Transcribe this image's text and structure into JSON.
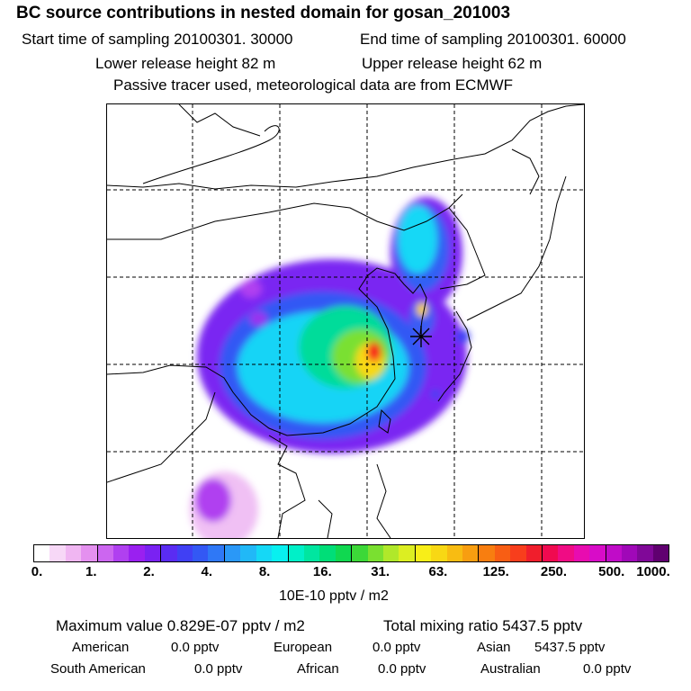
{
  "header": {
    "title": "BC  source contributions in nested domain for gosan_201003",
    "start": "Start time of sampling 20100301. 30000",
    "end": "End time of sampling 20100301. 60000",
    "lower": "Lower release height   82 m",
    "upper": "Upper release height   62 m",
    "note": "Passive tracer used, meteorological data are from ECMWF"
  },
  "colorbar": {
    "ticks": [
      "0.",
      "1.",
      "2.",
      "4.",
      "8.",
      "16.",
      "31.",
      "63.",
      "125.",
      "250.",
      "500.",
      "1000."
    ],
    "unit": "10E-10 pptv / m2",
    "colors": [
      "#ffffff",
      "#f7d8f7",
      "#f0b6f2",
      "#e490ef",
      "#cc66f0",
      "#b040f0",
      "#9a20f0",
      "#7a22f2",
      "#5a2cf2",
      "#4040f4",
      "#3358f4",
      "#2f78f6",
      "#2a98f7",
      "#21b8f7",
      "#15d8f6",
      "#08f0f0",
      "#00f0c8",
      "#00e6a0",
      "#00de78",
      "#10d850",
      "#3cd838",
      "#7ae030",
      "#b0e82a",
      "#dcee22",
      "#f8ee18",
      "#f8d814",
      "#f8bc12",
      "#f89e10",
      "#f87e10",
      "#f85e14",
      "#f83e1c",
      "#f01e2c",
      "#f00a50",
      "#f00c84",
      "#e80cb0",
      "#d80cc8",
      "#c00cc8",
      "#a008b8",
      "#800898",
      "#600070"
    ]
  },
  "stats": {
    "max_value": "Maximum value  0.829E-07 pptv / m2",
    "total": "Total mixing ratio     5437.5 pptv"
  },
  "regions": {
    "american_label": "American",
    "american_value": "0.0 pptv",
    "european_label": "European",
    "european_value": "0.0 pptv",
    "asian_label": "Asian",
    "asian_value": "5437.5 pptv",
    "south_american_label": "South American",
    "south_american_value": "0.0 pptv",
    "african_label": "African",
    "african_value": "0.0 pptv",
    "australian_label": "Australian",
    "australian_value": "0.0 pptv"
  }
}
